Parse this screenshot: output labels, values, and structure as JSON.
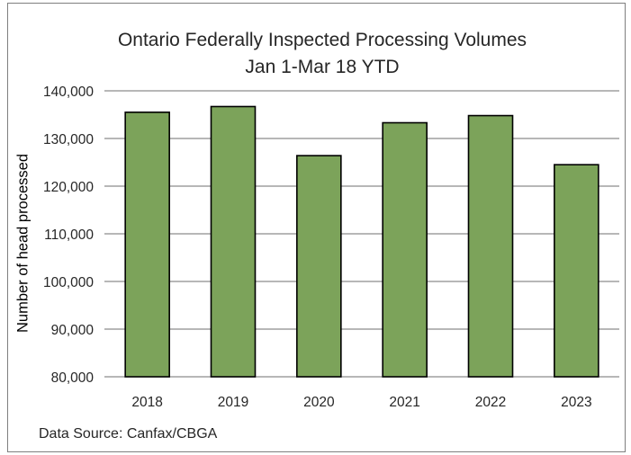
{
  "chart_data": {
    "type": "bar",
    "title": "Ontario Federally Inspected Processing Volumes",
    "subtitle": "Jan 1-Mar 18  YTD",
    "xlabel": "",
    "ylabel": "Number of head processed",
    "categories": [
      "2018",
      "2019",
      "2020",
      "2021",
      "2022",
      "2023"
    ],
    "values": [
      135500,
      136700,
      126400,
      133300,
      134800,
      124500
    ],
    "ylim": [
      80000,
      140000
    ],
    "yticks": [
      80000,
      90000,
      100000,
      110000,
      120000,
      130000,
      140000
    ],
    "ytick_labels": [
      "80,000",
      "90,000",
      "100,000",
      "110,000",
      "120,000",
      "130,000",
      "140,000"
    ],
    "grid": true,
    "legend": "none",
    "bar_color": "#7ca35a",
    "bar_edge_color": "#000000",
    "source_note": "Data Source: Canfax/CBGA"
  }
}
